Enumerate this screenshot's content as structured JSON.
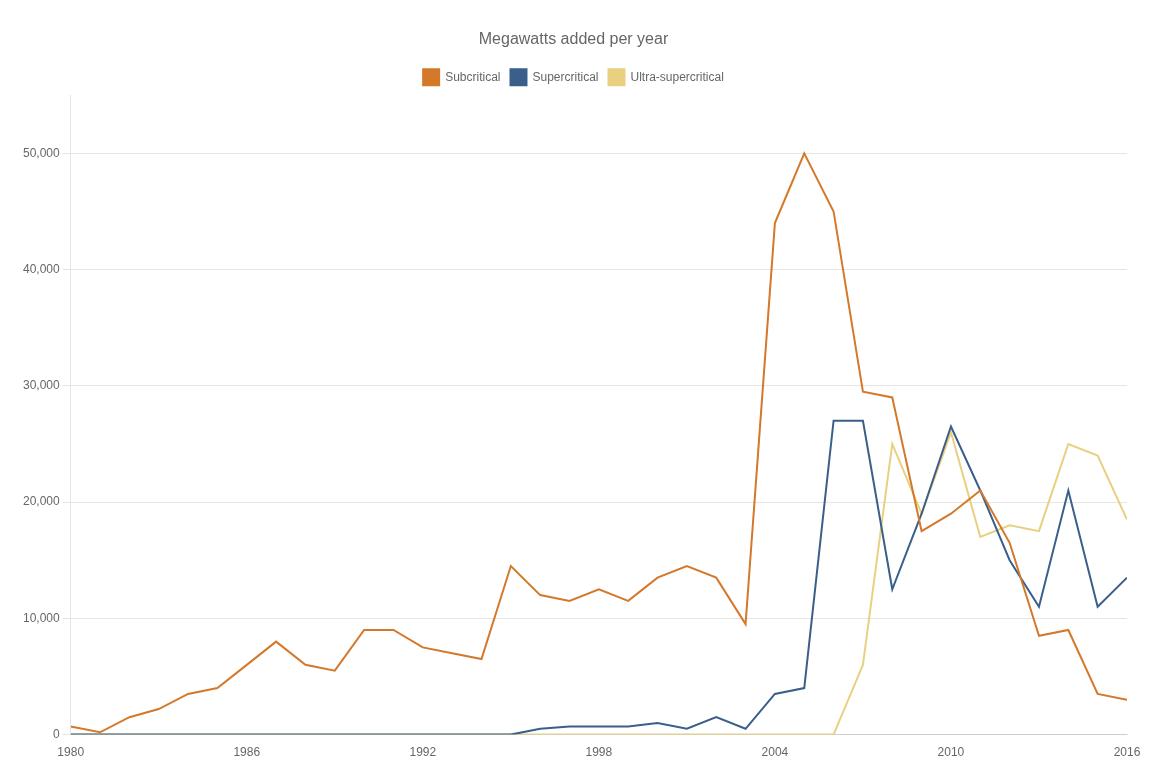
{
  "chart_data": {
    "type": "line",
    "title": "Megawatts added per year",
    "x": [
      1980,
      1981,
      1982,
      1983,
      1984,
      1985,
      1986,
      1987,
      1988,
      1989,
      1990,
      1991,
      1992,
      1993,
      1994,
      1995,
      1996,
      1997,
      1998,
      1999,
      2000,
      2001,
      2002,
      2003,
      2004,
      2005,
      2006,
      2007,
      2008,
      2009,
      2010,
      2011,
      2012,
      2013,
      2014,
      2015,
      2016
    ],
    "series": [
      {
        "name": "Subcritical",
        "color": "#d4782a",
        "values": [
          700,
          200,
          1500,
          2200,
          3500,
          4000,
          6000,
          8000,
          6000,
          5500,
          9000,
          9000,
          7500,
          7000,
          6500,
          14500,
          12000,
          11500,
          12500,
          11500,
          13500,
          14500,
          13500,
          9500,
          44000,
          50000,
          45000,
          29500,
          29000,
          17500,
          19000,
          21000,
          16500,
          8500,
          9000,
          3500,
          3000
        ]
      },
      {
        "name": "Supercritical",
        "color": "#3a5f8a",
        "values": [
          0,
          0,
          0,
          0,
          0,
          0,
          0,
          0,
          0,
          0,
          0,
          0,
          0,
          0,
          0,
          0,
          500,
          700,
          700,
          700,
          1000,
          500,
          1500,
          500,
          3500,
          4000,
          27000,
          27000,
          12500,
          19000,
          26500,
          21000,
          15000,
          11000,
          21000,
          11000,
          13500
        ]
      },
      {
        "name": "Ultra-supercritical",
        "color": "#e8d080",
        "values": [
          0,
          0,
          0,
          0,
          0,
          0,
          0,
          0,
          0,
          0,
          0,
          0,
          0,
          0,
          0,
          0,
          0,
          0,
          0,
          0,
          0,
          0,
          0,
          0,
          0,
          0,
          0,
          6000,
          25000,
          19000,
          26000,
          17000,
          18000,
          17500,
          25000,
          24000,
          18500
        ]
      }
    ],
    "xlim": [
      1980,
      2016
    ],
    "xticks": [
      1980,
      1986,
      1992,
      1998,
      2004,
      2010,
      2016
    ],
    "ylim": [
      0,
      55000
    ],
    "yticks": [
      0,
      {
        "value": 10000,
        "label": "10,000"
      },
      {
        "value": 20000,
        "label": "20,000"
      },
      {
        "value": 30000,
        "label": "30,000"
      },
      {
        "value": 40000,
        "label": "40,000"
      },
      {
        "value": 50000,
        "label": "50,000"
      }
    ],
    "grid": "y",
    "legend": "top"
  }
}
